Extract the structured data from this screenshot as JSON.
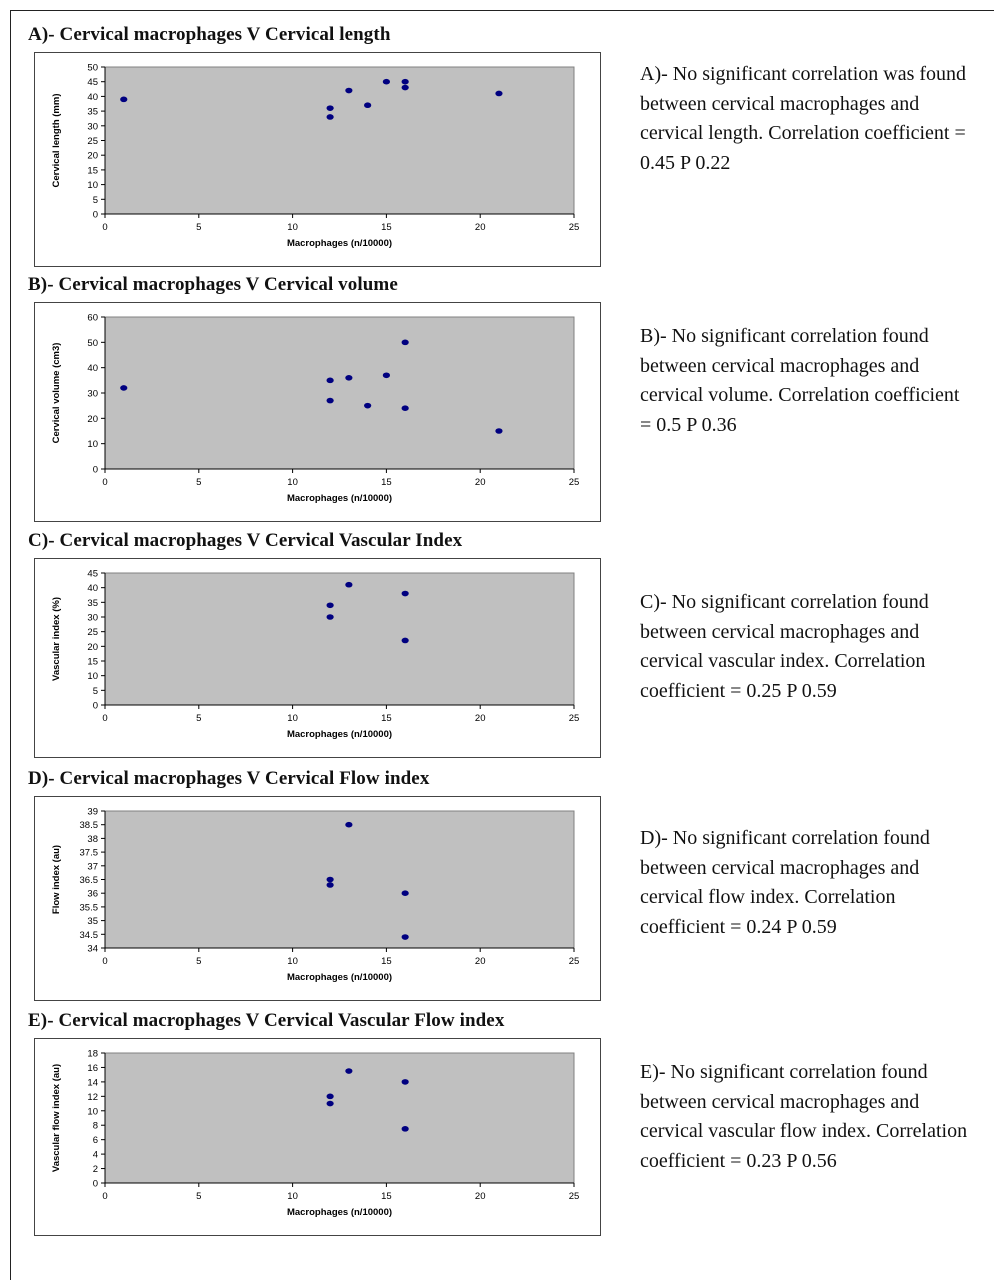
{
  "chart_data": [
    {
      "type": "scatter",
      "title": "A)- Cervical macrophages V Cervical length",
      "xlabel": "Macrophages (n/10000)",
      "ylabel": "Cervical length (mm)",
      "xlim": [
        0,
        25
      ],
      "ylim": [
        0,
        50
      ],
      "x_ticks": [
        "0",
        "5",
        "10",
        "15",
        "20",
        "25"
      ],
      "y_ticks": [
        "0",
        "5",
        "10",
        "15",
        "20",
        "25",
        "30",
        "35",
        "40",
        "45",
        "50"
      ],
      "grid": false,
      "points": [
        [
          1,
          39
        ],
        [
          12,
          36
        ],
        [
          12,
          33
        ],
        [
          13,
          42
        ],
        [
          14,
          37
        ],
        [
          15,
          45
        ],
        [
          16,
          45
        ],
        [
          16,
          43
        ],
        [
          21,
          41
        ]
      ],
      "description": "A)- No significant correlation was found between cervical macrophages and cervical length. Correlation coefficient = 0.45 P 0.22"
    },
    {
      "type": "scatter",
      "title": "B)- Cervical macrophages V Cervical volume",
      "xlabel": "Macrophages (n/10000)",
      "ylabel": "Cervical volume (cm3)",
      "xlim": [
        0,
        25
      ],
      "ylim": [
        0,
        60
      ],
      "x_ticks": [
        "0",
        "5",
        "10",
        "15",
        "20",
        "25"
      ],
      "y_ticks": [
        "0",
        "10",
        "20",
        "30",
        "40",
        "50",
        "60"
      ],
      "grid": false,
      "points": [
        [
          1,
          32
        ],
        [
          12,
          35
        ],
        [
          12,
          27
        ],
        [
          13,
          36
        ],
        [
          14,
          25
        ],
        [
          15,
          37
        ],
        [
          16,
          50
        ],
        [
          16,
          24
        ],
        [
          21,
          15
        ]
      ],
      "description": "B)- No significant correlation found between cervical macrophages and cervical volume. Correlation coefficient = 0.5 P 0.36"
    },
    {
      "type": "scatter",
      "title": "C)- Cervical macrophages V Cervical Vascular Index",
      "xlabel": "Macrophages (n/10000)",
      "ylabel": "Vascular index (%)",
      "xlim": [
        0,
        25
      ],
      "ylim": [
        0,
        45
      ],
      "x_ticks": [
        "0",
        "5",
        "10",
        "15",
        "20",
        "25"
      ],
      "y_ticks": [
        "0",
        "5",
        "10",
        "15",
        "20",
        "25",
        "30",
        "35",
        "40",
        "45"
      ],
      "grid": false,
      "points": [
        [
          12,
          34
        ],
        [
          12,
          30
        ],
        [
          13,
          41
        ],
        [
          16,
          38
        ],
        [
          16,
          22
        ]
      ],
      "description": "C)- No significant correlation found between cervical macrophages and cervical vascular index. Correlation coefficient = 0.25 P 0.59"
    },
    {
      "type": "scatter",
      "title": "D)- Cervical macrophages V Cervical Flow index",
      "xlabel": "Macrophages (n/10000)",
      "ylabel": "Flow index (au)",
      "xlim": [
        0,
        25
      ],
      "ylim": [
        34,
        39
      ],
      "x_ticks": [
        "0",
        "5",
        "10",
        "15",
        "20",
        "25"
      ],
      "y_ticks": [
        "34",
        "34.5",
        "35",
        "35.5",
        "36",
        "36.5",
        "37",
        "37.5",
        "38",
        "38.5",
        "39"
      ],
      "grid": false,
      "points": [
        [
          13,
          38.5
        ],
        [
          12,
          36.5
        ],
        [
          12,
          36.3
        ],
        [
          16,
          36
        ],
        [
          16,
          34.4
        ]
      ],
      "description": "D)- No significant correlation found between cervical macrophages and cervical flow index. Correlation coefficient = 0.24 P 0.59"
    },
    {
      "type": "scatter",
      "title": "E)- Cervical macrophages V Cervical Vascular Flow index",
      "xlabel": "Macrophages (n/10000)",
      "ylabel": "Vascular flow index (au)",
      "xlim": [
        0,
        25
      ],
      "ylim": [
        0,
        18
      ],
      "x_ticks": [
        "0",
        "5",
        "10",
        "15",
        "20",
        "25"
      ],
      "y_ticks": [
        "0",
        "2",
        "4",
        "6",
        "8",
        "10",
        "12",
        "14",
        "16",
        "18"
      ],
      "grid": false,
      "points": [
        [
          12,
          12
        ],
        [
          12,
          11
        ],
        [
          13,
          15.5
        ],
        [
          16,
          14
        ],
        [
          16,
          7.5
        ]
      ],
      "description": "E)- No significant correlation found between cervical macrophages and cervical vascular flow index. Correlation coefficient = 0.23 P 0.56"
    }
  ]
}
